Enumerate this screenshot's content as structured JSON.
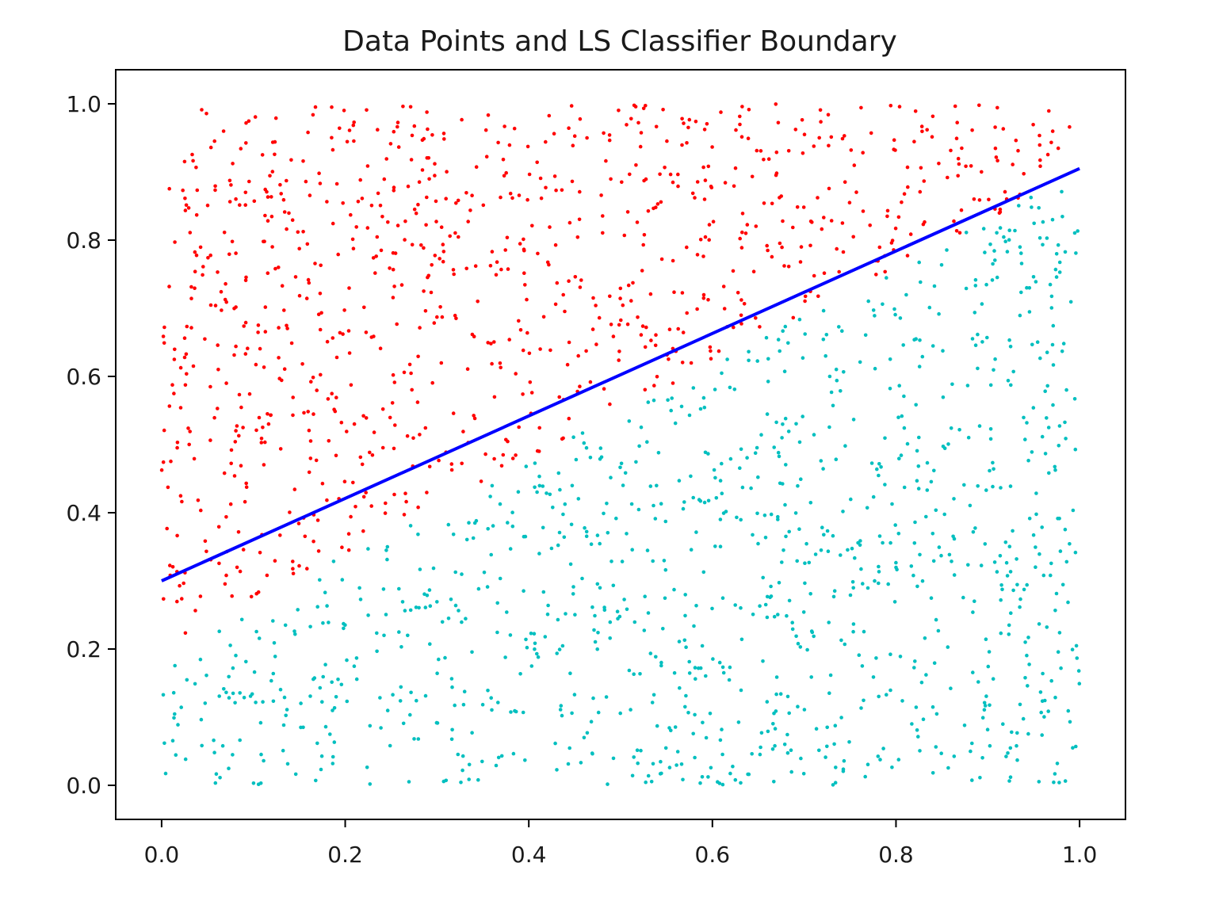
{
  "chart_data": {
    "type": "scatter",
    "title": "Data Points and LS Classifier Boundary",
    "xlabel": "",
    "ylabel": "",
    "xlim": [
      -0.05,
      1.05
    ],
    "ylim": [
      -0.05,
      1.05
    ],
    "xticks": [
      0.0,
      0.2,
      0.4,
      0.6,
      0.8,
      1.0
    ],
    "yticks": [
      0.0,
      0.2,
      0.4,
      0.6,
      0.8,
      1.0
    ],
    "xtick_labels": [
      "0.0",
      "0.2",
      "0.4",
      "0.6",
      "0.8",
      "1.0"
    ],
    "ytick_labels": [
      "0.0",
      "0.2",
      "0.4",
      "0.6",
      "0.8",
      "1.0"
    ],
    "grid": false,
    "series": [
      {
        "color": "#ff0000",
        "marker": "dot",
        "rule": "points above boundary (approx. y > 0.3 + 0.61x, true boundary ~ y > 0.2 + 0.7x)",
        "count": 1000
      },
      {
        "color": "#00bfbf",
        "marker": "dot",
        "rule": "points below boundary",
        "count": 1000
      }
    ],
    "lines": [
      {
        "color": "#0000ff",
        "x": [
          0.0,
          1.0
        ],
        "y": [
          0.3,
          0.905
        ]
      }
    ]
  }
}
